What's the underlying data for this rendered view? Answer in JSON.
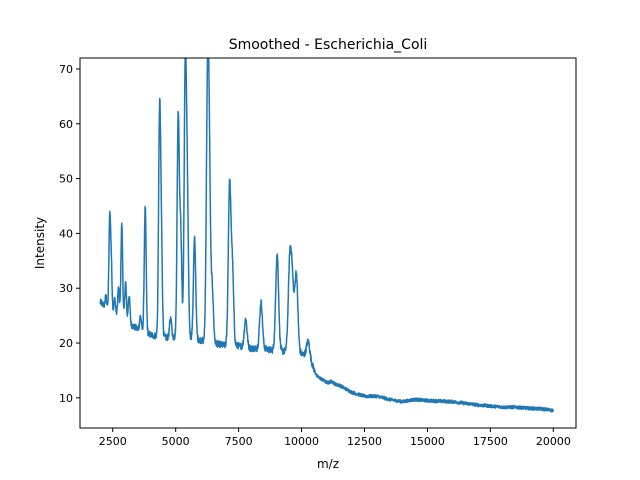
{
  "chart_data": {
    "type": "line",
    "title": "Smoothed - Escherichia_Coli",
    "xlabel": "m/z",
    "ylabel": "Intensity",
    "xlim": [
      1200,
      20900
    ],
    "ylim": [
      4.5,
      72
    ],
    "xticks": [
      2500,
      5000,
      7500,
      10000,
      12500,
      15000,
      17500,
      20000
    ],
    "yticks": [
      10,
      20,
      30,
      40,
      50,
      60,
      70
    ],
    "grid": false,
    "legend": "none",
    "series": [
      {
        "color": "#1f77b4",
        "baseline": [
          [
            2000,
            27.5
          ],
          [
            2500,
            25.5
          ],
          [
            3000,
            24.0
          ],
          [
            3500,
            22.5
          ],
          [
            4000,
            21.5
          ],
          [
            4500,
            21.0
          ],
          [
            5000,
            21.0
          ],
          [
            5500,
            21.0
          ],
          [
            6000,
            20.5
          ],
          [
            6500,
            20.0
          ],
          [
            7000,
            19.5
          ],
          [
            7500,
            19.5
          ],
          [
            8000,
            19.0
          ],
          [
            8500,
            19.0
          ],
          [
            9000,
            18.5
          ],
          [
            9500,
            18.5
          ],
          [
            10000,
            18.0
          ],
          [
            10300,
            17.5
          ],
          [
            10600,
            14.0
          ],
          [
            11000,
            12.8
          ],
          [
            11500,
            12.3
          ],
          [
            12000,
            11.0
          ],
          [
            12500,
            10.3
          ],
          [
            13000,
            10.3
          ],
          [
            13500,
            9.7
          ],
          [
            14000,
            9.3
          ],
          [
            14500,
            9.7
          ],
          [
            15000,
            9.5
          ],
          [
            15500,
            9.4
          ],
          [
            16000,
            9.3
          ],
          [
            16500,
            9.0
          ],
          [
            17000,
            8.7
          ],
          [
            17500,
            8.5
          ],
          [
            18000,
            8.3
          ],
          [
            18500,
            8.3
          ],
          [
            19000,
            8.1
          ],
          [
            19500,
            8.0
          ],
          [
            20000,
            7.7
          ]
        ],
        "peaks": [
          [
            2230,
            28.5
          ],
          [
            2380,
            42.2
          ],
          [
            2440,
            34.5
          ],
          [
            2580,
            28.0
          ],
          [
            2730,
            30.0
          ],
          [
            2860,
            41.6
          ],
          [
            3010,
            31.0
          ],
          [
            3150,
            28.6
          ],
          [
            3600,
            24.9
          ],
          [
            3790,
            44.6
          ],
          [
            4360,
            60.2
          ],
          [
            4430,
            38.0
          ],
          [
            4800,
            24.5
          ],
          [
            5100,
            61.1
          ],
          [
            5200,
            40.0
          ],
          [
            5380,
            68.5
          ],
          [
            5460,
            46.0
          ],
          [
            5750,
            39.0
          ],
          [
            6260,
            60.0
          ],
          [
            6330,
            52.0
          ],
          [
            6450,
            30.0
          ],
          [
            7140,
            48.2
          ],
          [
            7250,
            33.8
          ],
          [
            7780,
            24.4
          ],
          [
            8390,
            27.5
          ],
          [
            9030,
            36.2
          ],
          [
            9530,
            33.6
          ],
          [
            9630,
            30.0
          ],
          [
            9790,
            32.5
          ],
          [
            10260,
            20.3
          ],
          [
            11200,
            13.0
          ]
        ]
      }
    ]
  }
}
